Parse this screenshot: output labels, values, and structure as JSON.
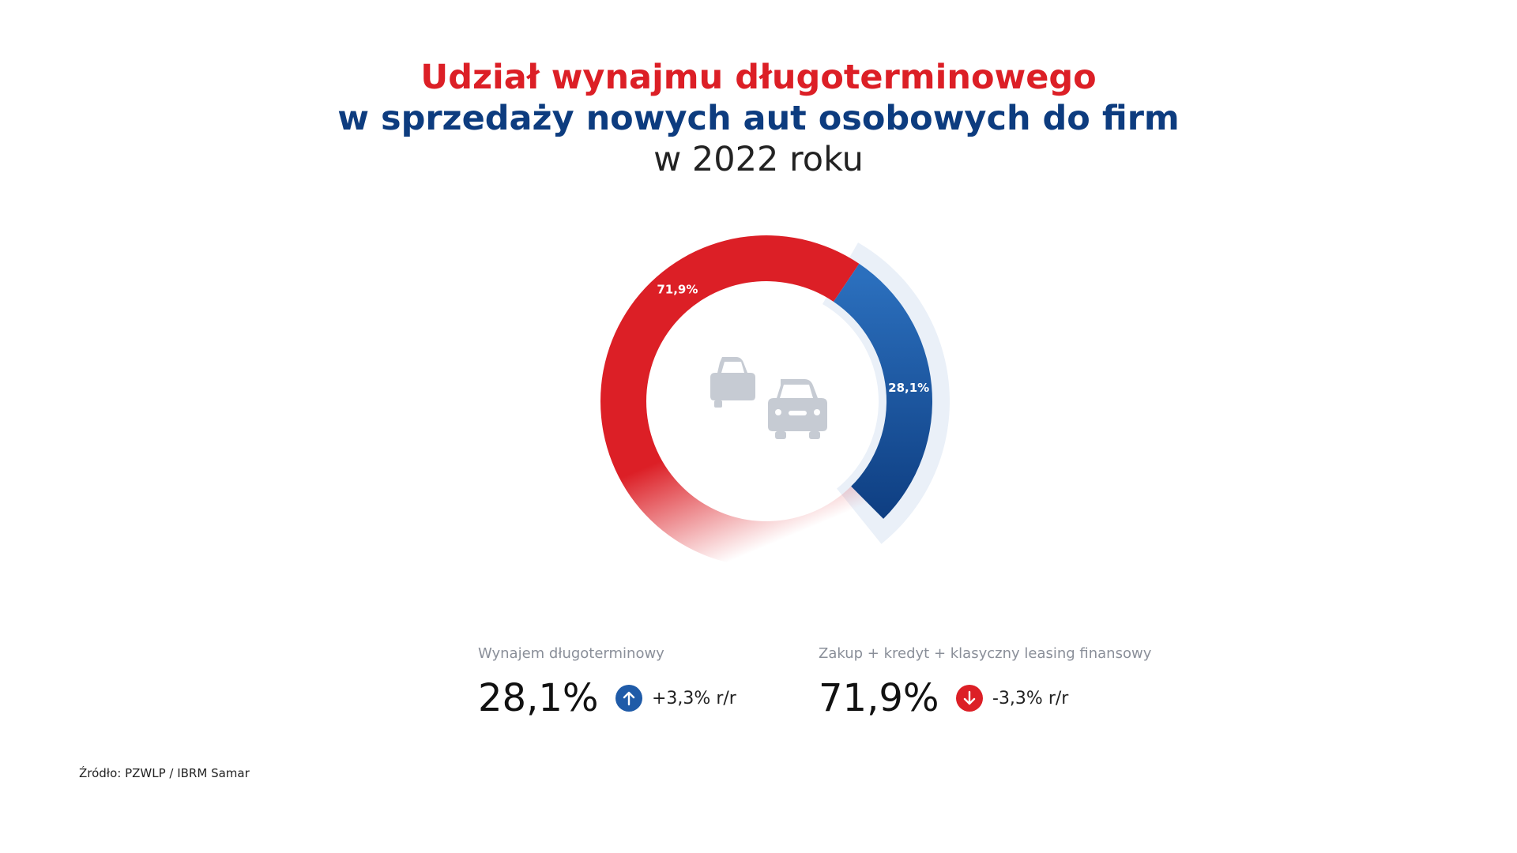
{
  "title": {
    "line1": "Udział wynajmu długoterminowego",
    "line2": "w sprzedaży nowych aut osobowych do firm",
    "line3": "w 2022 roku"
  },
  "chart_data": {
    "type": "pie",
    "donut": true,
    "center_icon": "cars-icon",
    "slices": [
      {
        "label": "Wynajem długoterminowy",
        "value": 28.1,
        "display": "28,1%",
        "color": "#1f5ba8"
      },
      {
        "label": "Zakup + kredyt + klasyczny leasing finansowy",
        "value": 71.9,
        "display": "71,9%",
        "color": "#dc1f26"
      }
    ]
  },
  "stats": [
    {
      "label": "Wynajem długoterminowy",
      "value": "28,1%",
      "change": "+3,3% r/r",
      "direction": "up",
      "icon": "arrow-up-icon",
      "icon_color": "#1f5ba8"
    },
    {
      "label": "Zakup + kredyt + klasyczny leasing finansowy",
      "value": "71,9%",
      "change": "-3,3% r/r",
      "direction": "down",
      "icon": "arrow-down-icon",
      "icon_color": "#dc1f26"
    }
  ],
  "source": "Źródło: PZWLP / IBRM Samar",
  "colors": {
    "red": "#dc1f26",
    "blue": "#0d3c7f",
    "blue_light": "#2b6fbd",
    "icon_gray": "#c6cbd3",
    "highlight_arc": "#eaf0f8"
  }
}
